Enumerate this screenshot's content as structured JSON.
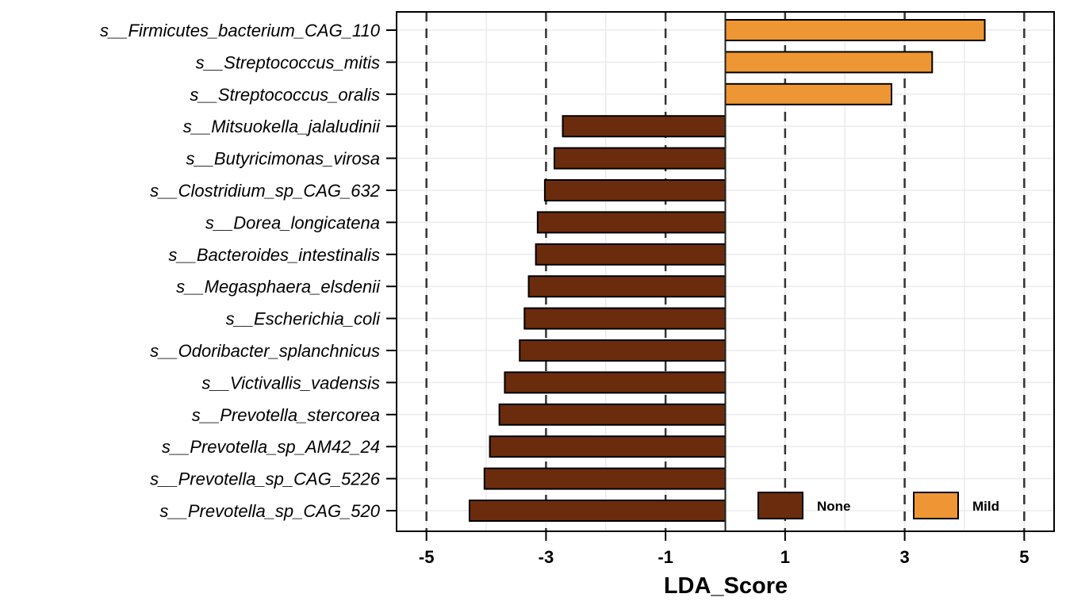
{
  "chart_data": {
    "type": "bar",
    "orientation": "horizontal",
    "xlabel": "LDA_Score",
    "ylabel": "",
    "xlim": [
      -5.5,
      5.5
    ],
    "xticks": [
      -5,
      -3,
      -1,
      1,
      3,
      5
    ],
    "xtick_labels": [
      "-5",
      "-3",
      "-1",
      "1",
      "3",
      "5"
    ],
    "dashed_reference_lines": [
      -5,
      -3,
      -1,
      1,
      3,
      5
    ],
    "grid": true,
    "legend_position": "bottom-right",
    "legend": [
      {
        "name": "None",
        "color": "#6b2c0d"
      },
      {
        "name": "Mild",
        "color": "#ee9634"
      }
    ],
    "categories": [
      "s__Firmicutes_bacterium_CAG_110",
      "s__Streptococcus_mitis",
      "s__Streptococcus_oralis",
      "s__Mitsuokella_jalaludinii",
      "s__Butyricimonas_virosa",
      "s__Clostridium_sp_CAG_632",
      "s__Dorea_longicatena",
      "s__Bacteroides_intestinalis",
      "s__Megasphaera_elsdenii",
      "s__Escherichia_coli",
      "s__Odoribacter_splanchnicus",
      "s__Victivallis_vadensis",
      "s__Prevotella_stercorea",
      "s__Prevotella_sp_AM42_24",
      "s__Prevotella_sp_CAG_5226",
      "s__Prevotella_sp_CAG_520"
    ],
    "values": [
      4.34,
      3.46,
      2.78,
      -2.72,
      -2.86,
      -3.02,
      -3.14,
      -3.17,
      -3.29,
      -3.36,
      -3.44,
      -3.69,
      -3.78,
      -3.94,
      -4.03,
      -4.28
    ],
    "groups": [
      "Mild",
      "Mild",
      "Mild",
      "None",
      "None",
      "None",
      "None",
      "None",
      "None",
      "None",
      "None",
      "None",
      "None",
      "None",
      "None",
      "None"
    ]
  }
}
